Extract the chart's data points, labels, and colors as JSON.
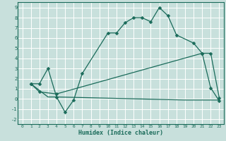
{
  "xlabel": "Humidex (Indice chaleur)",
  "bg_color": "#c8e0dc",
  "grid_color": "#ffffff",
  "line_color": "#1a6b5a",
  "xlim": [
    -0.5,
    23.5
  ],
  "ylim": [
    -2.5,
    9.5
  ],
  "xticks": [
    0,
    1,
    2,
    3,
    4,
    5,
    6,
    7,
    8,
    9,
    10,
    11,
    12,
    13,
    14,
    15,
    16,
    17,
    18,
    19,
    20,
    21,
    22,
    23
  ],
  "yticks": [
    -2,
    -1,
    0,
    1,
    2,
    3,
    4,
    5,
    6,
    7,
    8,
    9
  ],
  "line1_x": [
    1,
    2,
    3,
    4,
    5,
    6,
    7,
    10,
    11,
    12,
    13,
    14,
    15,
    16,
    17,
    18,
    20,
    21,
    22,
    23
  ],
  "line1_y": [
    1.5,
    1.5,
    3.0,
    0.2,
    -1.3,
    -0.1,
    2.5,
    6.5,
    6.5,
    7.5,
    8.0,
    8.0,
    7.6,
    9.0,
    8.2,
    6.3,
    5.5,
    4.5,
    1.1,
    -0.2
  ],
  "line2_x": [
    1,
    2,
    4,
    21,
    22,
    23
  ],
  "line2_y": [
    1.5,
    0.7,
    0.5,
    4.5,
    4.5,
    0.1
  ],
  "line3_x": [
    1,
    3,
    4,
    19,
    22,
    23
  ],
  "line3_y": [
    1.5,
    0.2,
    0.2,
    -0.1,
    -0.1,
    -0.1
  ]
}
